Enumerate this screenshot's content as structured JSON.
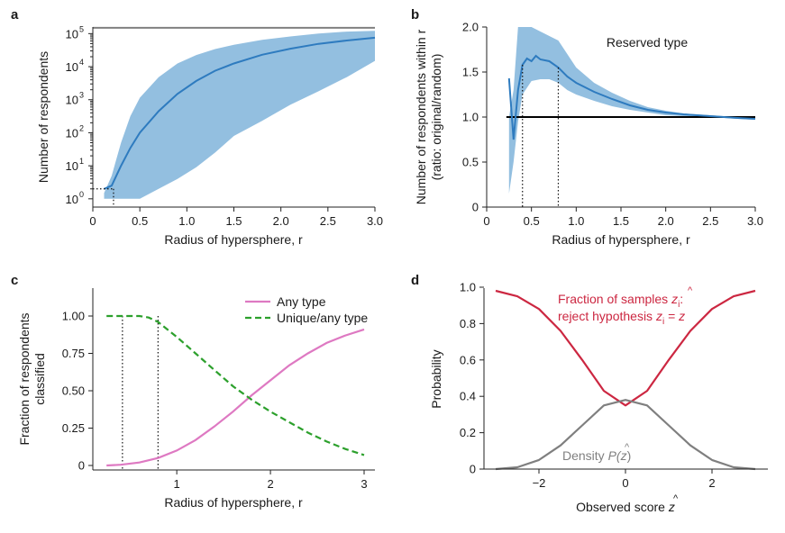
{
  "chart_data": [
    {
      "panel": "a",
      "type": "line",
      "xlabel": "Radius of hypersphere, r",
      "ylabel": "Number of respondents",
      "xlim": [
        0,
        3.0
      ],
      "ylim_log10": [
        -0.25,
        5.2
      ],
      "yscale": "log",
      "x_ticks": [
        "0",
        "0.5",
        "1.0",
        "1.5",
        "2.0",
        "2.5",
        "3.0"
      ],
      "y_ticks": [
        {
          "base": "10",
          "exp": "0"
        },
        {
          "base": "10",
          "exp": "1"
        },
        {
          "base": "10",
          "exp": "2"
        },
        {
          "base": "10",
          "exp": "3"
        },
        {
          "base": "10",
          "exp": "4"
        },
        {
          "base": "10",
          "exp": "5"
        }
      ],
      "reference_line": {
        "y": 150000,
        "color": "#808080"
      },
      "series": [
        {
          "color": "#2e7bbf",
          "x": [
            0.12,
            0.2,
            0.3,
            0.4,
            0.5,
            0.7,
            0.9,
            1.1,
            1.3,
            1.5,
            1.8,
            2.1,
            2.4,
            2.7,
            3.0
          ],
          "y": [
            2,
            2.5,
            10,
            35,
            100,
            450,
            1500,
            3700,
            7500,
            12500,
            23000,
            35000,
            49000,
            62000,
            75000
          ]
        }
      ],
      "band": {
        "color": "#93bfe0",
        "x": [
          0.12,
          0.2,
          0.3,
          0.4,
          0.5,
          0.7,
          0.9,
          1.1,
          1.3,
          1.5,
          1.8,
          2.1,
          2.4,
          2.7,
          3.0
        ],
        "upper": [
          1.5,
          5,
          50,
          320,
          1150,
          4800,
          12500,
          22500,
          34000,
          46000,
          65000,
          82000,
          100000,
          115000,
          122000
        ],
        "lower": [
          1,
          1,
          1,
          1,
          1,
          2,
          4,
          9,
          25,
          80,
          230,
          700,
          1800,
          4800,
          15000
        ]
      },
      "dotted_markers": [
        {
          "x": 0.22,
          "y": 2
        }
      ]
    },
    {
      "panel": "b",
      "type": "line",
      "xlabel": "Radius of hypersphere, r",
      "ylabel": [
        "Number of respondents within r",
        "(ratio: original/random)"
      ],
      "title_in_plot": "Reserved type",
      "xlim": [
        0,
        3.0
      ],
      "ylim": [
        0,
        2.0
      ],
      "x_ticks": [
        "0",
        "0.5",
        "1.0",
        "1.5",
        "2.0",
        "2.5",
        "3.0"
      ],
      "y_ticks": [
        "0",
        "0.5",
        "1.0",
        "1.5",
        "2.0"
      ],
      "reference_line": {
        "y": 1.0,
        "color": "#000000"
      },
      "series": [
        {
          "color": "#2e7bbf",
          "x": [
            0.25,
            0.3,
            0.35,
            0.4,
            0.45,
            0.5,
            0.55,
            0.6,
            0.7,
            0.8,
            0.9,
            1.0,
            1.2,
            1.4,
            1.6,
            1.8,
            2.0,
            2.2,
            2.5,
            2.8,
            3.0
          ],
          "y": [
            1.43,
            0.75,
            1.3,
            1.58,
            1.65,
            1.62,
            1.68,
            1.64,
            1.62,
            1.55,
            1.45,
            1.38,
            1.28,
            1.2,
            1.13,
            1.08,
            1.05,
            1.03,
            1.01,
            0.99,
            0.98
          ]
        }
      ],
      "band": {
        "color": "#93bfe0",
        "x": [
          0.25,
          0.3,
          0.35,
          0.4,
          0.5,
          0.6,
          0.7,
          0.8,
          0.9,
          1.0,
          1.2,
          1.4,
          1.6,
          1.8,
          2.0,
          2.2,
          2.5,
          2.8,
          3.0
        ],
        "upper": [
          1.0,
          1.3,
          2.0,
          2.0,
          2.0,
          1.95,
          1.9,
          1.85,
          1.7,
          1.55,
          1.38,
          1.27,
          1.18,
          1.11,
          1.07,
          1.04,
          1.02,
          1.0,
          0.99
        ],
        "lower": [
          0.15,
          0.5,
          0.95,
          1.25,
          1.4,
          1.42,
          1.42,
          1.38,
          1.3,
          1.25,
          1.18,
          1.12,
          1.08,
          1.05,
          1.02,
          1.01,
          1.0,
          0.98,
          0.97
        ]
      },
      "dotted_markers": [
        {
          "x": 0.4,
          "y": 1.58
        },
        {
          "x": 0.8,
          "y": 1.55
        }
      ]
    },
    {
      "panel": "c",
      "type": "line",
      "xlabel": "Radius of hypersphere, r",
      "ylabel": [
        "Fraction of respondents",
        "classified"
      ],
      "xlim": [
        0.2,
        3.0
      ],
      "ylim": [
        0,
        1.0
      ],
      "x_ticks": [
        "1",
        "2",
        "3"
      ],
      "y_ticks": [
        "0",
        "0.25",
        "0.50",
        "0.75",
        "1.00"
      ],
      "legend_position": "top-right",
      "series": [
        {
          "name": "Any type",
          "color": "#de79c2",
          "dash": "solid",
          "x": [
            0.25,
            0.4,
            0.6,
            0.8,
            1.0,
            1.2,
            1.4,
            1.6,
            1.8,
            2.0,
            2.2,
            2.4,
            2.6,
            2.8,
            3.0
          ],
          "y": [
            0.0,
            0.005,
            0.02,
            0.05,
            0.1,
            0.17,
            0.26,
            0.36,
            0.47,
            0.57,
            0.67,
            0.75,
            0.82,
            0.87,
            0.91
          ]
        },
        {
          "name": "Unique/any type",
          "color": "#2ca02c",
          "dash": "dashed",
          "x": [
            0.25,
            0.4,
            0.6,
            0.7,
            0.8,
            1.0,
            1.2,
            1.4,
            1.6,
            1.8,
            2.0,
            2.2,
            2.4,
            2.6,
            2.8,
            3.0
          ],
          "y": [
            1.0,
            1.0,
            1.0,
            0.99,
            0.96,
            0.86,
            0.75,
            0.64,
            0.53,
            0.44,
            0.36,
            0.29,
            0.22,
            0.16,
            0.11,
            0.07
          ]
        }
      ],
      "dotted_markers": [
        {
          "x": 0.42,
          "y": 1.0
        },
        {
          "x": 0.8,
          "y": 1.0
        }
      ]
    },
    {
      "panel": "d",
      "type": "line",
      "xlabel_parts": {
        "main": "Observed score ",
        "var": "z",
        "hat": "^"
      },
      "ylabel": "Probability",
      "xlim": [
        -3.4,
        3.4
      ],
      "ylim": [
        0,
        1.0
      ],
      "x_ticks": [
        "−2",
        "0",
        "2"
      ],
      "y_ticks": [
        "0",
        "0.2",
        "0.4",
        "0.6",
        "0.8",
        "1.0"
      ],
      "series": [
        {
          "name": "Fraction of samples",
          "color": "#cc2741",
          "x": [
            -3.0,
            -2.5,
            -2.0,
            -1.5,
            -1.0,
            -0.5,
            0.0,
            0.5,
            1.0,
            1.5,
            2.0,
            2.5,
            3.0
          ],
          "y": [
            0.98,
            0.95,
            0.88,
            0.76,
            0.6,
            0.43,
            0.35,
            0.43,
            0.6,
            0.76,
            0.88,
            0.95,
            0.98
          ]
        },
        {
          "name": "Density",
          "color": "#7f7f7f",
          "x": [
            -3.0,
            -2.5,
            -2.0,
            -1.5,
            -1.0,
            -0.5,
            0.0,
            0.5,
            1.0,
            1.5,
            2.0,
            2.5,
            3.0
          ],
          "y": [
            0.0,
            0.01,
            0.05,
            0.13,
            0.24,
            0.35,
            0.38,
            0.35,
            0.24,
            0.13,
            0.05,
            0.01,
            0.0
          ]
        }
      ],
      "annotations": {
        "fraction_line1": "Fraction of samples ",
        "fraction_var": "z",
        "fraction_sub": "i",
        "fraction_line1_end": ":",
        "reject_text": "reject hypothesis ",
        "reject_var": "z",
        "reject_sub": "i",
        "reject_eq": " = ",
        "reject_var2": "z",
        "density_text": "Density ",
        "density_formula_open": "P(",
        "density_var": "z",
        "density_formula_close": ")"
      }
    }
  ],
  "panel_labels": [
    "a",
    "b",
    "c",
    "d"
  ]
}
